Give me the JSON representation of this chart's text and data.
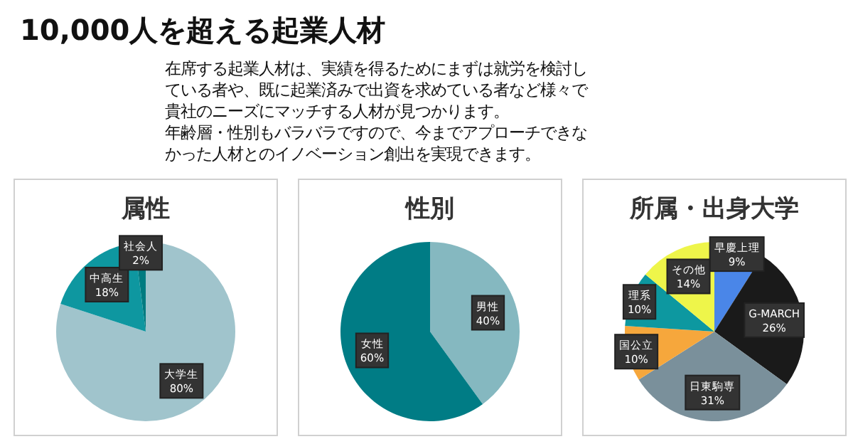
{
  "chart_data": [
    {
      "type": "other",
      "title": "10,000人を超える起業人材",
      "subtitle": "在席する起業人材は、実績を得るためにまずは就労を検討している者や、既に起業済みで出資を求めている者など様々で貴社のニーズにマッチする人材が見つかります。",
      "annotations": [
        "年齢層・性別もバラバラですので、今までアプローチできなかった人材とのイノベーション創出を実現できます。"
      ]
    },
    {
      "type": "pie",
      "title": "属性",
      "categories": [
        "大学生",
        "中高生",
        "社会人"
      ],
      "values": [
        80,
        18,
        2
      ],
      "value_labels": [
        "80%",
        "18%",
        "2%"
      ],
      "colors": [
        "#a0c4cc",
        "#0e97a0",
        "#007b80"
      ]
    },
    {
      "type": "pie",
      "title": "性別",
      "categories": [
        "男性",
        "女性"
      ],
      "values": [
        40,
        60
      ],
      "value_labels": [
        "40%",
        "60%"
      ],
      "colors": [
        "#85b8c0",
        "#007c85"
      ]
    },
    {
      "type": "pie",
      "title": "所属・出身大学",
      "categories": [
        "早慶上理",
        "G-MARCH",
        "日東駒専",
        "国公立",
        "理系",
        "その他"
      ],
      "values": [
        9,
        26,
        31,
        10,
        10,
        14
      ],
      "value_labels": [
        "9%",
        "26%",
        "31%",
        "10%",
        "10%",
        "14%"
      ],
      "colors": [
        "#4a86e8",
        "#1a1a1a",
        "#7a909b",
        "#f6a73c",
        "#0d98a0",
        "#eef54a"
      ]
    }
  ]
}
